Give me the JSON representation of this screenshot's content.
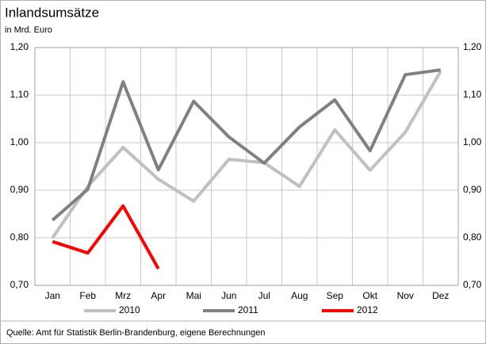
{
  "chart_data": {
    "type": "line",
    "title": "Inlandsumsätze",
    "subtitle": "in Mrd. Euro",
    "source": "Quelle: Amt für Statistik Berlin-Brandenburg, eigene Berechnungen",
    "categories": [
      "Jan",
      "Feb",
      "Mrz",
      "Apr",
      "Mai",
      "Jun",
      "Jul",
      "Aug",
      "Sep",
      "Okt",
      "Nov",
      "Dez"
    ],
    "series": [
      {
        "name": "2010",
        "color": "#c0c0c0",
        "values": [
          0.8,
          0.908,
          0.99,
          0.923,
          0.877,
          0.965,
          0.958,
          0.908,
          1.027,
          0.942,
          1.022,
          1.15
        ]
      },
      {
        "name": "2011",
        "color": "#808080",
        "values": [
          0.837,
          0.902,
          1.128,
          0.943,
          1.087,
          1.012,
          0.957,
          1.033,
          1.09,
          0.983,
          1.143,
          1.153
        ]
      },
      {
        "name": "2012",
        "color": "#ff0000",
        "values": [
          0.792,
          0.768,
          0.867,
          0.735,
          null,
          null,
          null,
          null,
          null,
          null,
          null,
          null
        ]
      }
    ],
    "ylim": [
      0.7,
      1.2
    ],
    "yticks": [
      {
        "value": 0.7,
        "label": "0,70"
      },
      {
        "value": 0.8,
        "label": "0,80"
      },
      {
        "value": 0.9,
        "label": "0,90"
      },
      {
        "value": 1.0,
        "label": "1,00"
      },
      {
        "value": 1.1,
        "label": "1,10"
      },
      {
        "value": 1.2,
        "label": "1,20"
      }
    ],
    "grid": true,
    "legend": "bottom"
  }
}
